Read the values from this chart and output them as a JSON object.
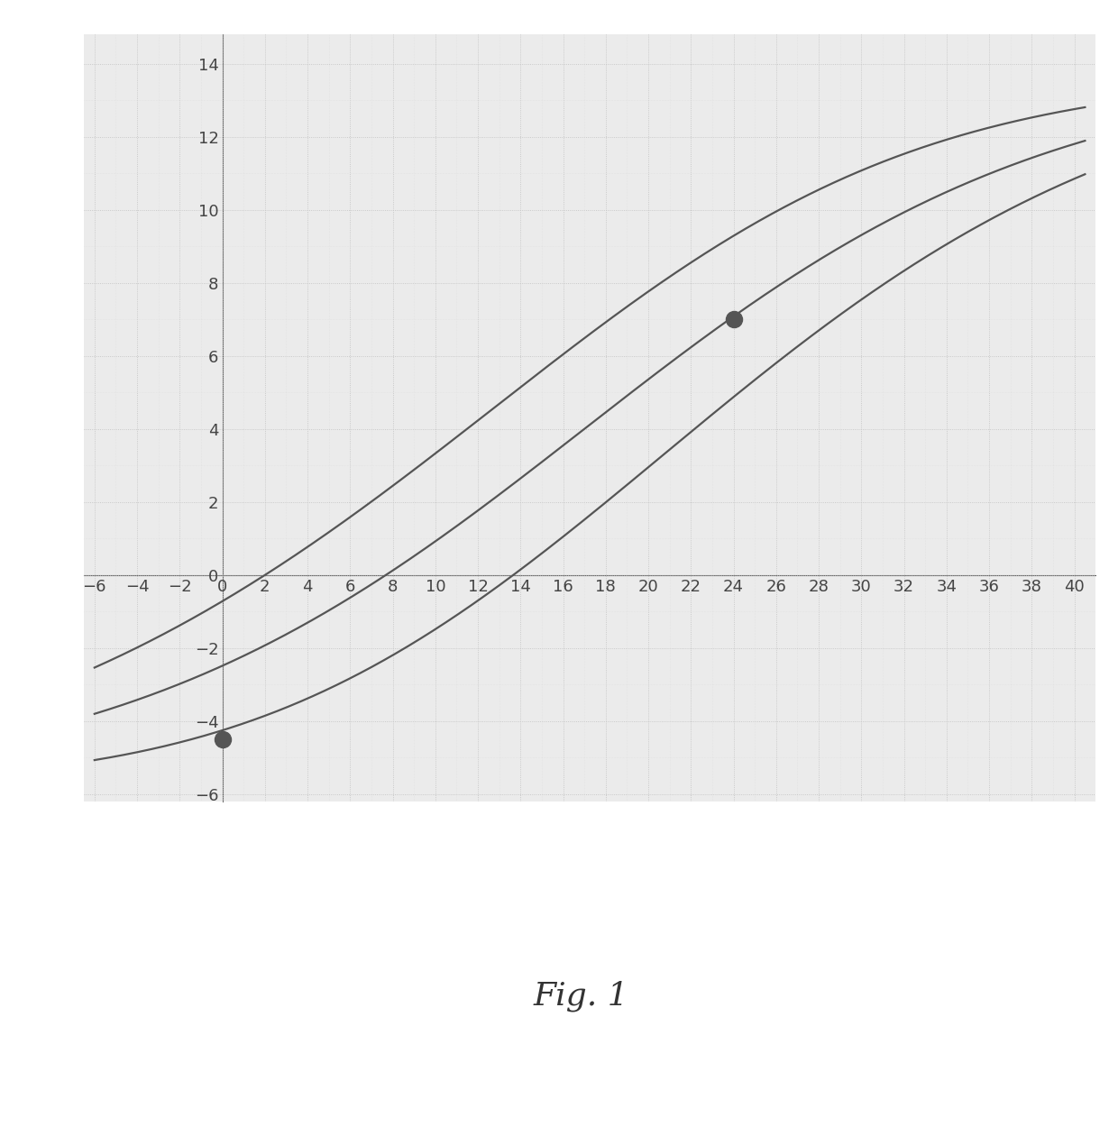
{
  "xlim": [
    -6.5,
    41
  ],
  "ylim": [
    -6.2,
    14.8
  ],
  "xticks": [
    -6,
    -4,
    -2,
    0,
    2,
    4,
    6,
    8,
    10,
    12,
    14,
    16,
    18,
    20,
    22,
    24,
    26,
    28,
    30,
    32,
    34,
    36,
    38,
    40
  ],
  "yticks": [
    -6,
    -4,
    -2,
    0,
    2,
    4,
    6,
    8,
    10,
    12,
    14
  ],
  "point1_x": 0,
  "point1_y": -4.5,
  "point2_x": 24,
  "point2_y": 7.0,
  "curve_color": "#555555",
  "point_color": "#555555",
  "grid_major_color": "#c0c0c0",
  "grid_minor_color": "#d8d8d8",
  "bg_color": "#ebebeb",
  "fig_label": "Fig. 1",
  "fig_label_fontsize": 26,
  "curve_linewidth": 1.6,
  "marker_size": 13,
  "x_start": -5.5,
  "x_end": 40.5,
  "y_start": -5.5,
  "y_end": 13.7,
  "mid_x_spread": 10,
  "upper_spread": 2.2,
  "lower_spread": -2.2
}
